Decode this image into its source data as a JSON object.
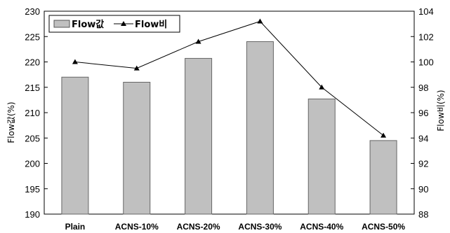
{
  "chart_data": {
    "type": "bar",
    "categories": [
      "Plain",
      "ACNS-10%",
      "ACNS-20%",
      "ACNS-30%",
      "ACNS-40%",
      "ACNS-50%"
    ],
    "series": [
      {
        "name": "Flow값",
        "type": "bar",
        "axis": "left",
        "values": [
          217,
          216,
          220.7,
          224,
          212.7,
          204.5
        ],
        "color": "#c0c0c0"
      },
      {
        "name": "Flow비",
        "type": "line",
        "axis": "right",
        "values": [
          100,
          99.5,
          101.6,
          103.2,
          98,
          94.2
        ],
        "color": "#000000",
        "marker": "triangle"
      }
    ],
    "ylabel": "Flow값(%)",
    "ylabel_right": "Flow비(%)",
    "ylim": [
      190,
      230
    ],
    "yticks": [
      190,
      195,
      200,
      205,
      210,
      215,
      220,
      225,
      230
    ],
    "ylim_right": [
      88,
      104
    ],
    "yticks_right": [
      88,
      90,
      92,
      94,
      96,
      98,
      100,
      102,
      104
    ],
    "grid": false,
    "legend_position": "top-left"
  }
}
